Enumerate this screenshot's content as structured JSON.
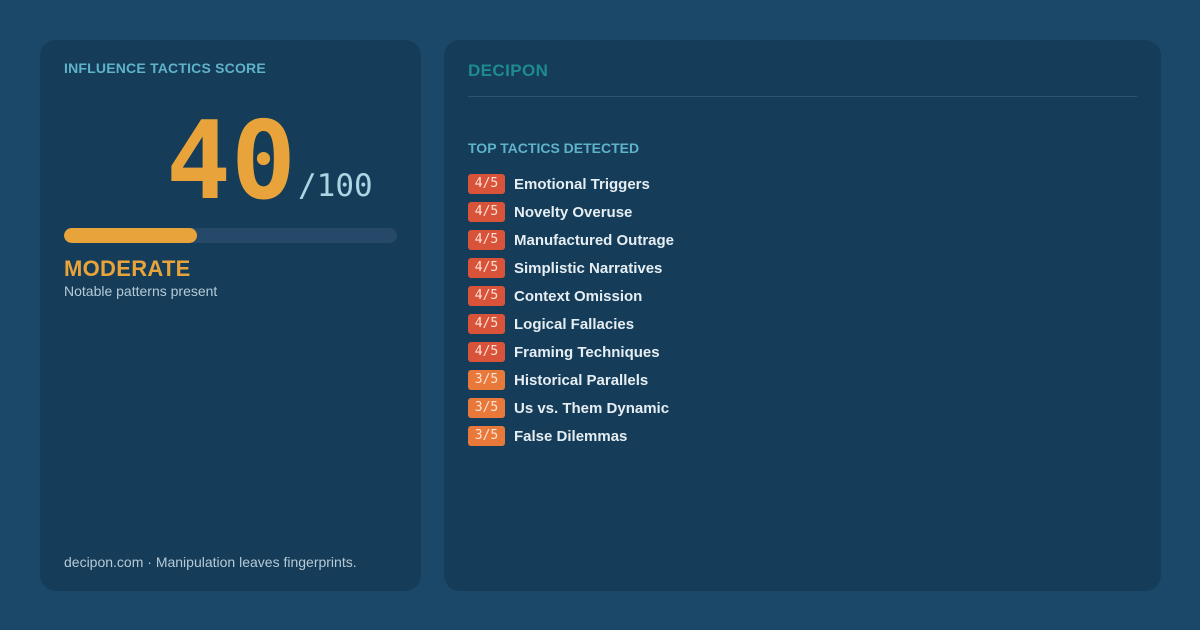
{
  "score_card": {
    "label": "INFLUENCE TACTICS SCORE",
    "score": "40",
    "max": "/100",
    "progress_fraction": 0.4,
    "level": "MODERATE",
    "description": "Notable patterns present",
    "footer": "decipon.com · Manipulation leaves fingerprints."
  },
  "tactics_card": {
    "brand": "DECIPON",
    "heading": "TOP TACTICS DETECTED",
    "items": [
      {
        "score": "4/5",
        "name": "Emotional Triggers",
        "severity": "high"
      },
      {
        "score": "4/5",
        "name": "Novelty Overuse",
        "severity": "high"
      },
      {
        "score": "4/5",
        "name": "Manufactured Outrage",
        "severity": "high"
      },
      {
        "score": "4/5",
        "name": "Simplistic Narratives",
        "severity": "high"
      },
      {
        "score": "4/5",
        "name": "Context Omission",
        "severity": "high"
      },
      {
        "score": "4/5",
        "name": "Logical Fallacies",
        "severity": "high"
      },
      {
        "score": "4/5",
        "name": "Framing Techniques",
        "severity": "high"
      },
      {
        "score": "3/5",
        "name": "Historical Parallels",
        "severity": "medium"
      },
      {
        "score": "3/5",
        "name": "Us vs. Them Dynamic",
        "severity": "medium"
      },
      {
        "score": "3/5",
        "name": "False Dilemmas",
        "severity": "medium"
      }
    ]
  },
  "colors": {
    "background": "#1b4868",
    "panel": "#153c58",
    "accent": "#e8a43a",
    "high_badge": "#d9523a",
    "medium_badge": "#e8793a",
    "brand": "#1e8a92"
  }
}
